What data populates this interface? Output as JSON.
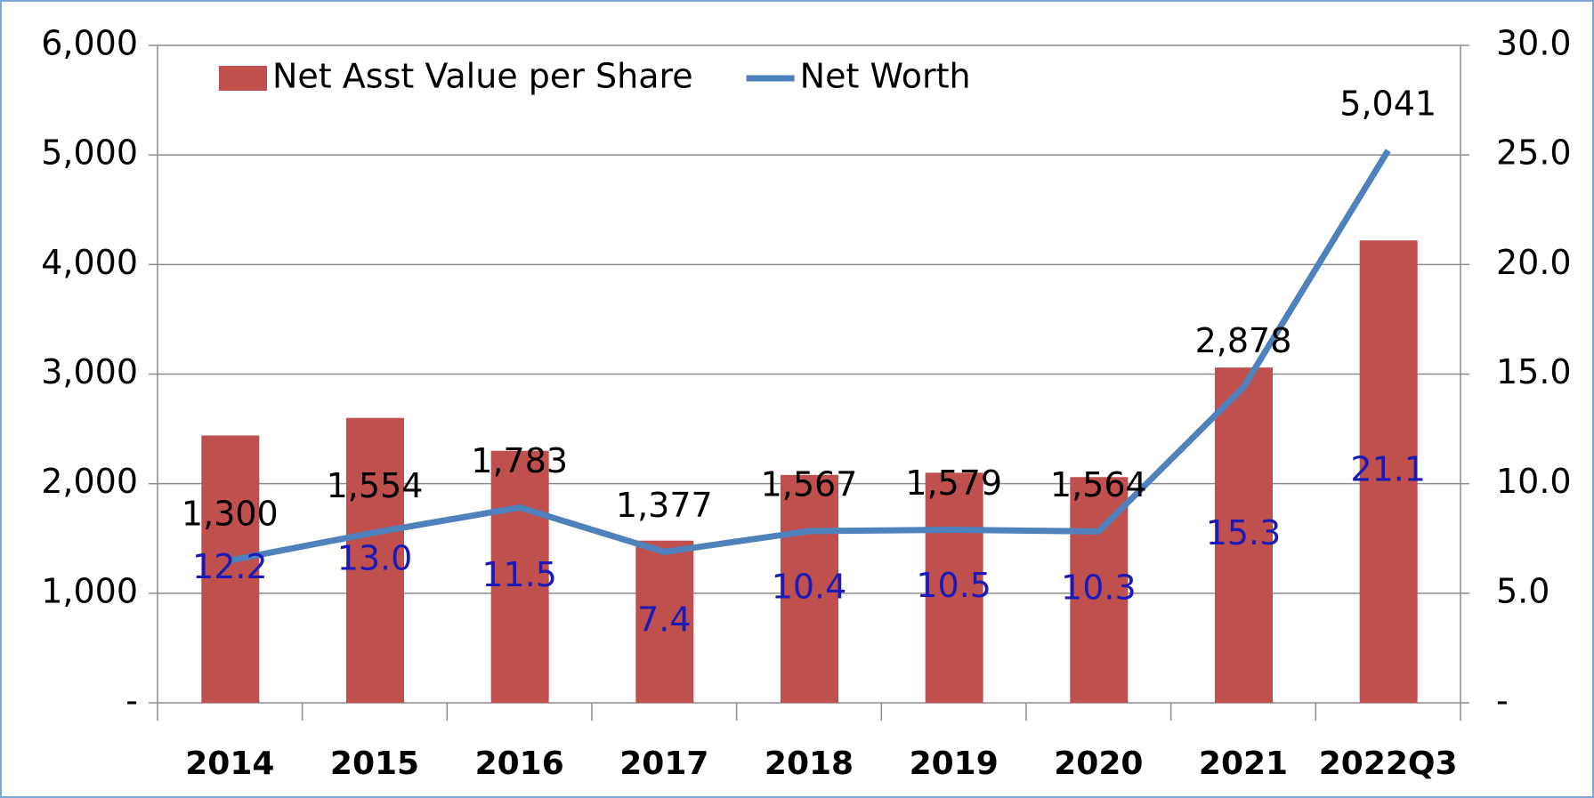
{
  "chart_data": {
    "type": "combo",
    "categories": [
      "2014",
      "2015",
      "2016",
      "2017",
      "2018",
      "2019",
      "2020",
      "2021",
      "2022Q3"
    ],
    "series": [
      {
        "name": "Net Asst Value per Share",
        "type": "bar",
        "axis": "y2",
        "color": "#c0504d",
        "values": [
          12.2,
          13.0,
          11.5,
          7.4,
          10.4,
          10.5,
          10.3,
          15.3,
          21.1
        ],
        "value_labels": [
          "12.2",
          "13.0",
          "11.5",
          "7.4",
          "10.4",
          "10.5",
          "10.3",
          "15.3",
          "21.1"
        ],
        "label_color": "#1a1ab8"
      },
      {
        "name": "Net Worth",
        "type": "line",
        "color": "#4f81bd",
        "values": [
          1300,
          1554,
          1783,
          1377,
          1567,
          1579,
          1564,
          2878,
          5041
        ],
        "value_labels": [
          "1,300",
          "1,554",
          "1,783",
          "1,377",
          "1,567",
          "1,579",
          "1,564",
          "2,878",
          "5,041"
        ],
        "label_color": "#000000"
      }
    ],
    "ylim": [
      0,
      6000
    ],
    "yticks": [
      {
        "value": 0,
        "label": "-"
      },
      {
        "value": 1000,
        "label": "1,000"
      },
      {
        "value": 2000,
        "label": "2,000"
      },
      {
        "value": 3000,
        "label": "3,000"
      },
      {
        "value": 4000,
        "label": "4,000"
      },
      {
        "value": 5000,
        "label": "5,000"
      },
      {
        "value": 6000,
        "label": "6,000"
      }
    ],
    "y2lim": [
      0,
      30
    ],
    "y2ticks": [
      {
        "value": 0,
        "label": "-"
      },
      {
        "value": 5,
        "label": "5.0"
      },
      {
        "value": 10,
        "label": "10.0"
      },
      {
        "value": 15,
        "label": "15.0"
      },
      {
        "value": 20,
        "label": "20.0"
      },
      {
        "value": 25,
        "label": "25.0"
      },
      {
        "value": 30,
        "label": "30.0"
      }
    ],
    "grid": true,
    "legend": "top"
  }
}
